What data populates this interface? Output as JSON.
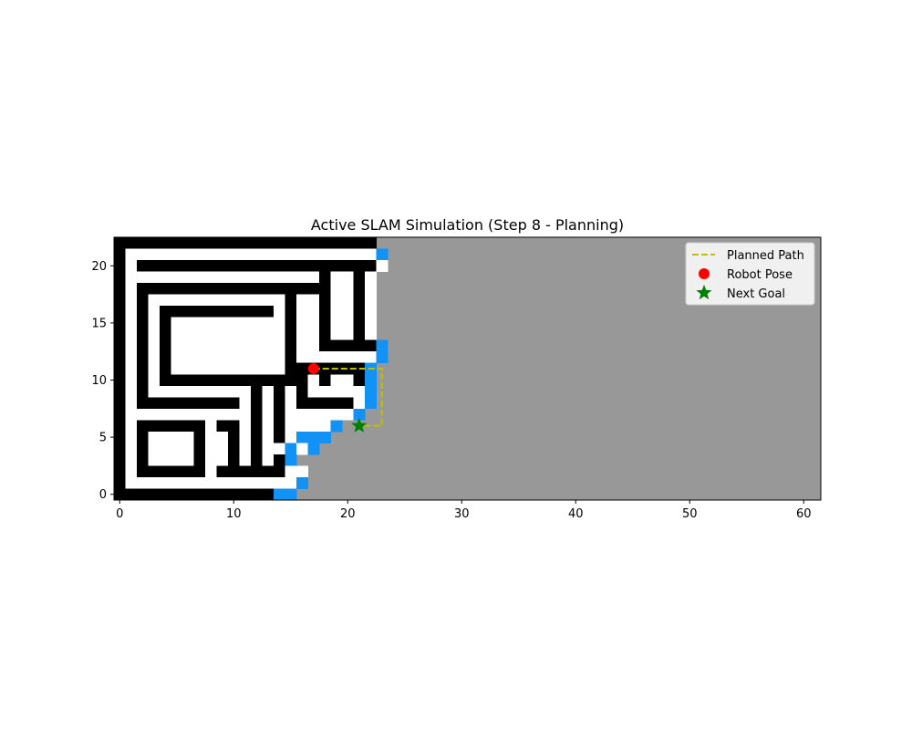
{
  "chart_data": {
    "type": "heatmap",
    "title": "Active SLAM Simulation (Step 8 - Planning)",
    "xlabel": "",
    "ylabel": "",
    "xlim": [
      -0.5,
      61.5
    ],
    "ylim": [
      -0.5,
      22.5
    ],
    "xticks": [
      0,
      10,
      20,
      30,
      40,
      50,
      60
    ],
    "yticks": [
      0,
      5,
      10,
      15,
      20
    ],
    "colors": {
      "unknown": "#989898",
      "free": "#ffffff",
      "occupied": "#000000",
      "frontier": "#1292f5",
      "planned_path": "#bfbf00",
      "robot_pose": "#ff0000",
      "next_goal": "#008000"
    },
    "occupancy_grid": {
      "rows_from_y": 22,
      "row_order": "top-to-bottom",
      "known_columns": [
        0,
        24
      ],
      "legend_for_rows": "#=occupied  .=free  F=frontier  ?=unknown",
      "rows": [
        "#######################??",
        "#......................F?",
        "#.#####################.?",
        "#.................#..#.??",
        "#.#################..#.??",
        "#.#............#..#..#.??",
        "#.#.##########.#..#..#.??",
        "#.#.#..........#..#..#.??",
        "#.#.#..........#..#..#.??",
        "#.#.#..........#..#####F?",
        "#.#.#..........#.......F?",
        "#.#.#..........#######F??",
        "#.#.#############.#..#F??",
        "#.#.........#.#.#.....F??",
        "#.#########.#.#.#####.F??",
        "#...........#.#......F???",
        "#.######.##.#.#....F?????",
        "#.#....#..#.#.#.FFF??????",
        "#.#....#..#.#..F.F???????",
        "#.#....#..#.#.#F?????????",
        "#.######.######..????????",
        "#...............F????????",
        "##############FF?????????"
      ]
    },
    "series": [
      {
        "name": "Planned Path",
        "type": "line",
        "x": [
          17,
          23,
          23,
          21
        ],
        "y": [
          11,
          11,
          6,
          6
        ]
      },
      {
        "name": "Robot Pose",
        "type": "scatter",
        "x": [
          17
        ],
        "y": [
          11
        ]
      },
      {
        "name": "Next Goal",
        "type": "scatter",
        "x": [
          21
        ],
        "y": [
          6
        ]
      }
    ],
    "legend_position": "top-right",
    "grid": false
  }
}
